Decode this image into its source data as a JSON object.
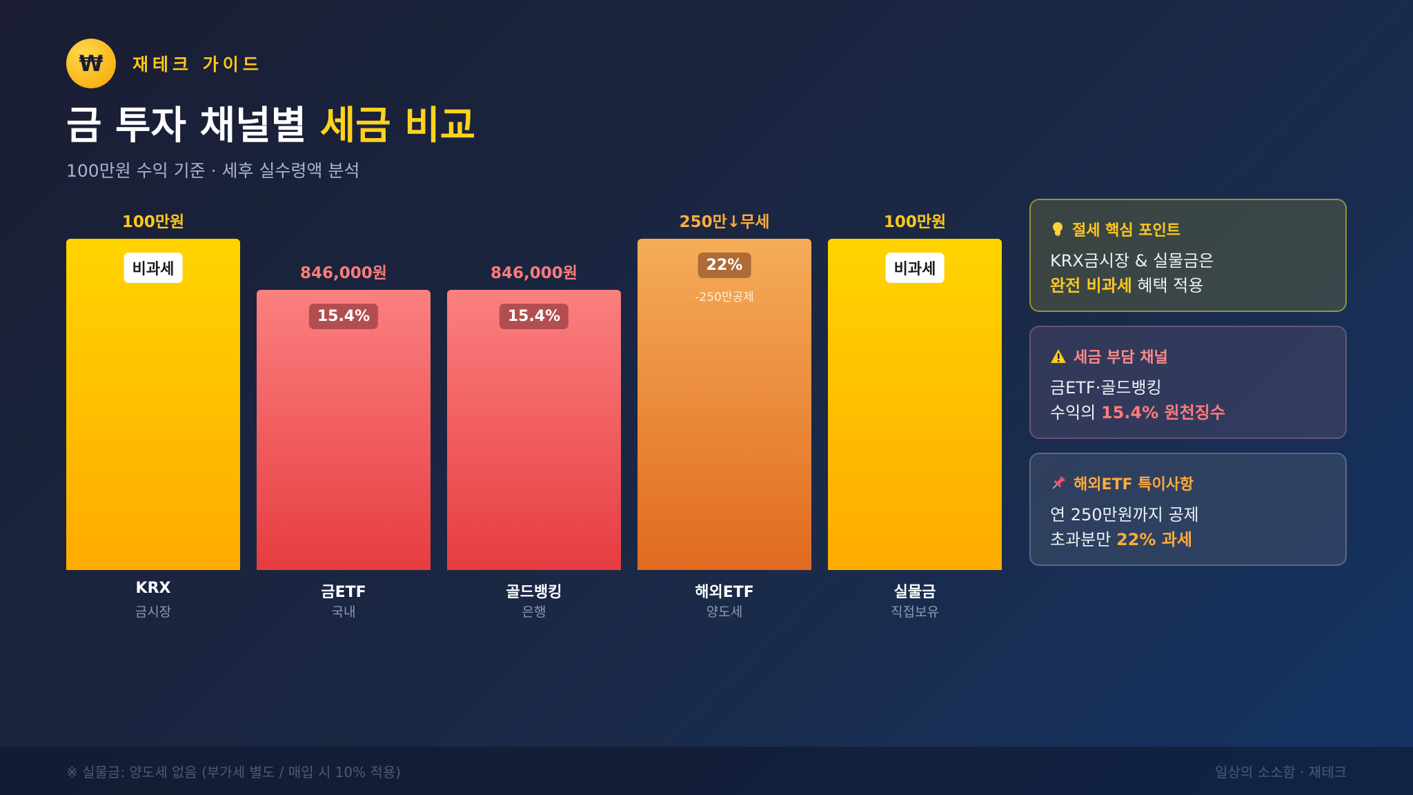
{
  "brand": {
    "logo": "₩",
    "name": "재테크 가이드"
  },
  "title": {
    "main": "금 투자 채널별 ",
    "highlight": "세금 비교"
  },
  "subtitle": "100만원 수익 기준 · 세후 실수령액 분석",
  "chart_data": {
    "type": "bar",
    "unit": "원 (세후 실수령액)",
    "ylim": [
      0,
      1000000
    ],
    "categories": [
      {
        "name": "KRX",
        "sub": "금시장",
        "value": 1000000,
        "label": "100만원",
        "badge": "비과세",
        "note": "",
        "style": "gold"
      },
      {
        "name": "금ETF",
        "sub": "국내",
        "value": 846000,
        "label": "846,000원",
        "badge": "15.4%",
        "note": "",
        "style": "red"
      },
      {
        "name": "골드뱅킹",
        "sub": "은행",
        "value": 846000,
        "label": "846,000원",
        "badge": "15.4%",
        "note": "",
        "style": "red"
      },
      {
        "name": "해외ETF",
        "sub": "양도세",
        "value": 1000000,
        "label": "250만↓무세",
        "badge": "22%",
        "note": "-250만공제",
        "style": "orange"
      },
      {
        "name": "실물금",
        "sub": "직접보유",
        "value": 1000000,
        "label": "100만원",
        "badge": "비과세",
        "note": "",
        "style": "gold"
      }
    ],
    "colors": {
      "gold": "#ffc81e",
      "red": "#ff7b7b",
      "orange": "#ffab3c"
    }
  },
  "cards": {
    "tip": {
      "icon": "lightbulb-icon",
      "title": "절세 핵심 포인트",
      "line1": "KRX금시장 & 실물금은",
      "line2_hl": "완전 비과세",
      "line2_rest": " 혜택 적용"
    },
    "warn": {
      "icon": "warning-icon",
      "title": "세금 부담 채널",
      "line1": "금ETF·골드뱅킹",
      "line2_pre": "수익의 ",
      "line2_hl": "15.4% 원천징수"
    },
    "pin": {
      "icon": "pushpin-icon",
      "title": "해외ETF 특이사항",
      "line1": "연 250만원까지 공제",
      "line2_pre": "초과분만 ",
      "line2_hl": "22% 과세"
    }
  },
  "footer": {
    "note": "※ 실물금: 양도세 없음 (부가세 별도 / 매입 시 10% 적용)",
    "credit": "일상의 소소함 · 재테크"
  }
}
